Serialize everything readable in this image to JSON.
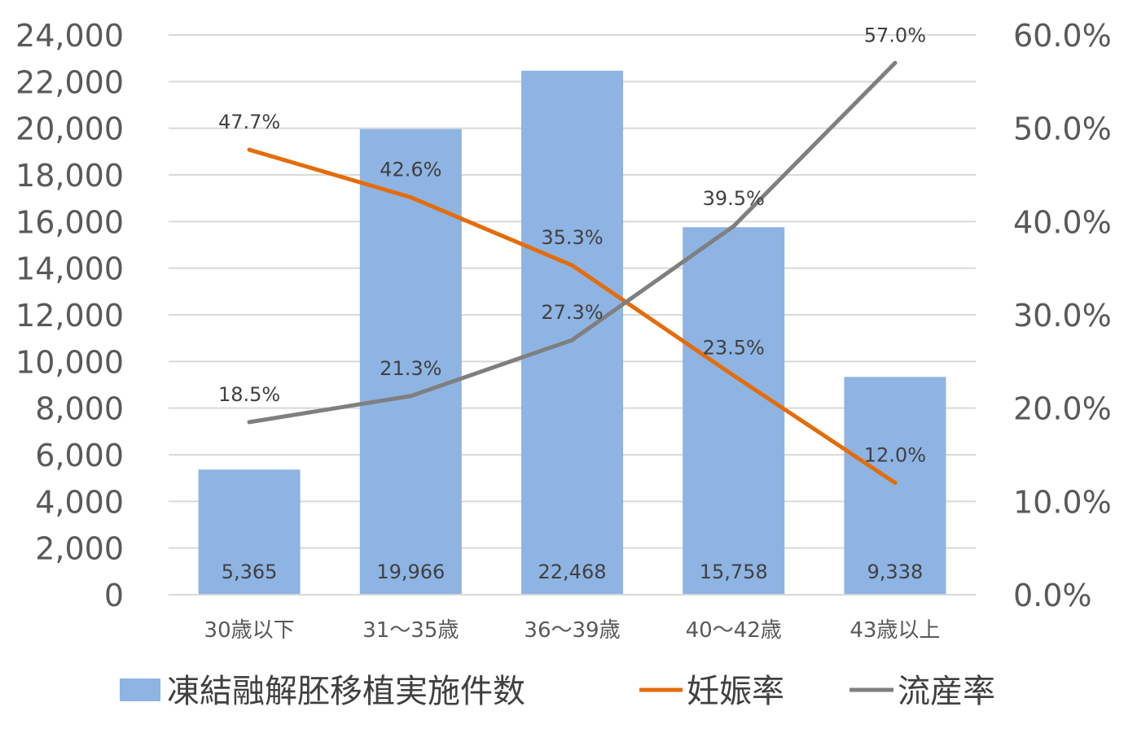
{
  "chart_data": {
    "type": "bar",
    "categories": [
      "30歳以下",
      "31～35歳",
      "36～39歳",
      "40～42歳",
      "43歳以上"
    ],
    "series": [
      {
        "name": "凍結融解胚移植実施件数",
        "type": "bar",
        "axis": "left",
        "color": "#8EB4E3",
        "values": [
          5365,
          19966,
          22468,
          15758,
          9338
        ],
        "labels": [
          "5,365",
          "19,966",
          "22,468",
          "15,758",
          "9,338"
        ]
      },
      {
        "name": "妊娠率",
        "type": "line",
        "axis": "right",
        "color": "#E46C0A",
        "values": [
          47.7,
          42.6,
          35.3,
          23.5,
          12.0
        ],
        "labels": [
          "47.7%",
          "42.6%",
          "35.3%",
          "23.5%",
          "12.0%"
        ]
      },
      {
        "name": "流産率",
        "type": "line",
        "axis": "right",
        "color": "#7F7F7F",
        "values": [
          18.5,
          21.3,
          27.3,
          39.5,
          57.0
        ],
        "labels": [
          "18.5%",
          "21.3%",
          "27.3%",
          "39.5%",
          "57.0%"
        ]
      }
    ],
    "y_left": {
      "min": 0,
      "max": 24000,
      "ticks": [
        "0",
        "2,000",
        "4,000",
        "6,000",
        "8,000",
        "10,000",
        "12,000",
        "14,000",
        "16,000",
        "18,000",
        "20,000",
        "22,000",
        "24,000"
      ]
    },
    "y_right": {
      "min": 0,
      "max": 60,
      "ticks": [
        "0.0%",
        "10.0%",
        "20.0%",
        "30.0%",
        "40.0%",
        "50.0%",
        "60.0%"
      ]
    },
    "grid": true,
    "legend_position": "bottom"
  }
}
